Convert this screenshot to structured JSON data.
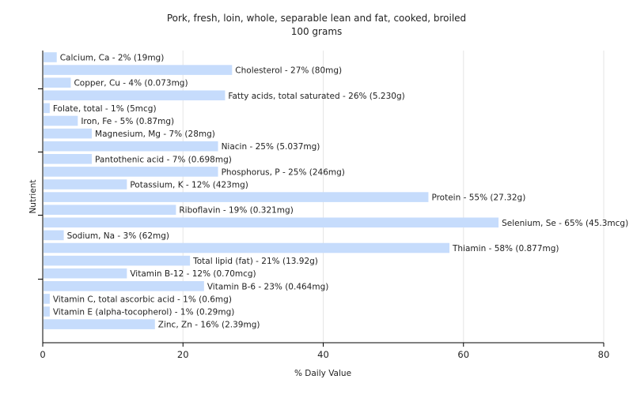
{
  "chart_data": {
    "type": "bar",
    "orientation": "horizontal",
    "title": "Pork, fresh, loin, whole, separable lean and fat, cooked, broiled",
    "subtitle": "100 grams",
    "xlabel": "% Daily Value",
    "ylabel": "Nutrient",
    "xlim": [
      0,
      80
    ],
    "xticks": [
      0,
      20,
      40,
      60,
      80
    ],
    "grid": true,
    "bar_color": "#c6dcfc",
    "categories": [
      "Calcium, Ca",
      "Cholesterol",
      "Copper, Cu",
      "Fatty acids, total saturated",
      "Folate, total",
      "Iron, Fe",
      "Magnesium, Mg",
      "Niacin",
      "Pantothenic acid",
      "Phosphorus, P",
      "Potassium, K",
      "Protein",
      "Riboflavin",
      "Selenium, Se",
      "Sodium, Na",
      "Thiamin",
      "Total lipid (fat)",
      "Vitamin B-12",
      "Vitamin B-6",
      "Vitamin C, total ascorbic acid",
      "Vitamin E (alpha-tocopherol)",
      "Zinc, Zn"
    ],
    "values": [
      2,
      27,
      4,
      26,
      1,
      5,
      7,
      25,
      7,
      25,
      12,
      55,
      19,
      65,
      3,
      58,
      21,
      12,
      23,
      1,
      1,
      16
    ],
    "labels": [
      "Calcium, Ca - 2% (19mg)",
      "Cholesterol - 27% (80mg)",
      "Copper, Cu - 4% (0.073mg)",
      "Fatty acids, total saturated - 26% (5.230g)",
      "Folate, total - 1% (5mcg)",
      "Iron, Fe - 5% (0.87mg)",
      "Magnesium, Mg - 7% (28mg)",
      "Niacin - 25% (5.037mg)",
      "Pantothenic acid - 7% (0.698mg)",
      "Phosphorus, P - 25% (246mg)",
      "Potassium, K - 12% (423mg)",
      "Protein - 55% (27.32g)",
      "Riboflavin - 19% (0.321mg)",
      "Selenium, Se - 65% (45.3mcg)",
      "Sodium, Na - 3% (62mg)",
      "Thiamin - 58% (0.877mg)",
      "Total lipid (fat) - 21% (13.92g)",
      "Vitamin B-12 - 12% (0.70mcg)",
      "Vitamin B-6 - 23% (0.464mg)",
      "Vitamin C, total ascorbic acid - 1% (0.6mg)",
      "Vitamin E (alpha-tocopherol) - 1% (0.29mg)",
      "Zinc, Zn - 16% (2.39mg)"
    ]
  }
}
